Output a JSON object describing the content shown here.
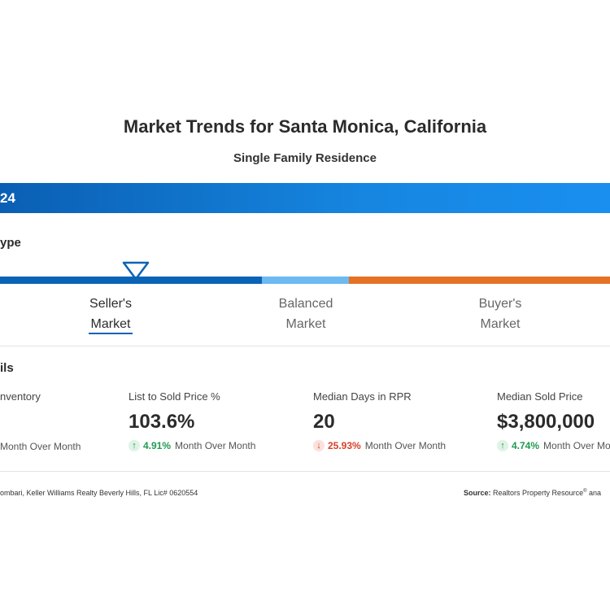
{
  "header": {
    "title": "Market Trends for Santa Monica, California",
    "subtitle": "Single Family Residence"
  },
  "banner": {
    "text": "24"
  },
  "market_type": {
    "heading": "ype",
    "indicator_position": "seller",
    "segments": [
      {
        "line1": "Seller's",
        "line2": "Market",
        "color": "#0b63b6",
        "active": true
      },
      {
        "line1": "Balanced",
        "line2": "Market",
        "color": "#6db9f2",
        "active": false
      },
      {
        "line1": "Buyer's",
        "line2": "Market",
        "color": "#e57224",
        "active": false
      }
    ]
  },
  "details": {
    "heading": "ils",
    "metrics": [
      {
        "label": "nventory",
        "value": "",
        "change_pct": "",
        "change_text": "Month Over Month",
        "direction": ""
      },
      {
        "label": "List to Sold Price %",
        "value": "103.6%",
        "change_pct": "4.91%",
        "change_text": "Month Over Month",
        "direction": "up"
      },
      {
        "label": "Median Days in RPR",
        "value": "20",
        "change_pct": "25.93%",
        "change_text": "Month Over Month",
        "direction": "down"
      },
      {
        "label": "Median Sold Price",
        "value": "$3,800,000",
        "change_pct": "4.74%",
        "change_text": "Month Over Mon",
        "direction": "up"
      }
    ]
  },
  "footer": {
    "left": "ombari, Keller Williams Realty Beverly Hills, FL Lic# 0620554",
    "source_label": "Source:",
    "source_text": "Realtors Property Resource",
    "source_sup": "®",
    "source_tail": " ana"
  },
  "colors": {
    "accent_blue": "#0b63b6",
    "balanced_blue": "#6db9f2",
    "buyer_orange": "#e57224",
    "up_green": "#1f9a50",
    "down_red": "#d6402c"
  }
}
